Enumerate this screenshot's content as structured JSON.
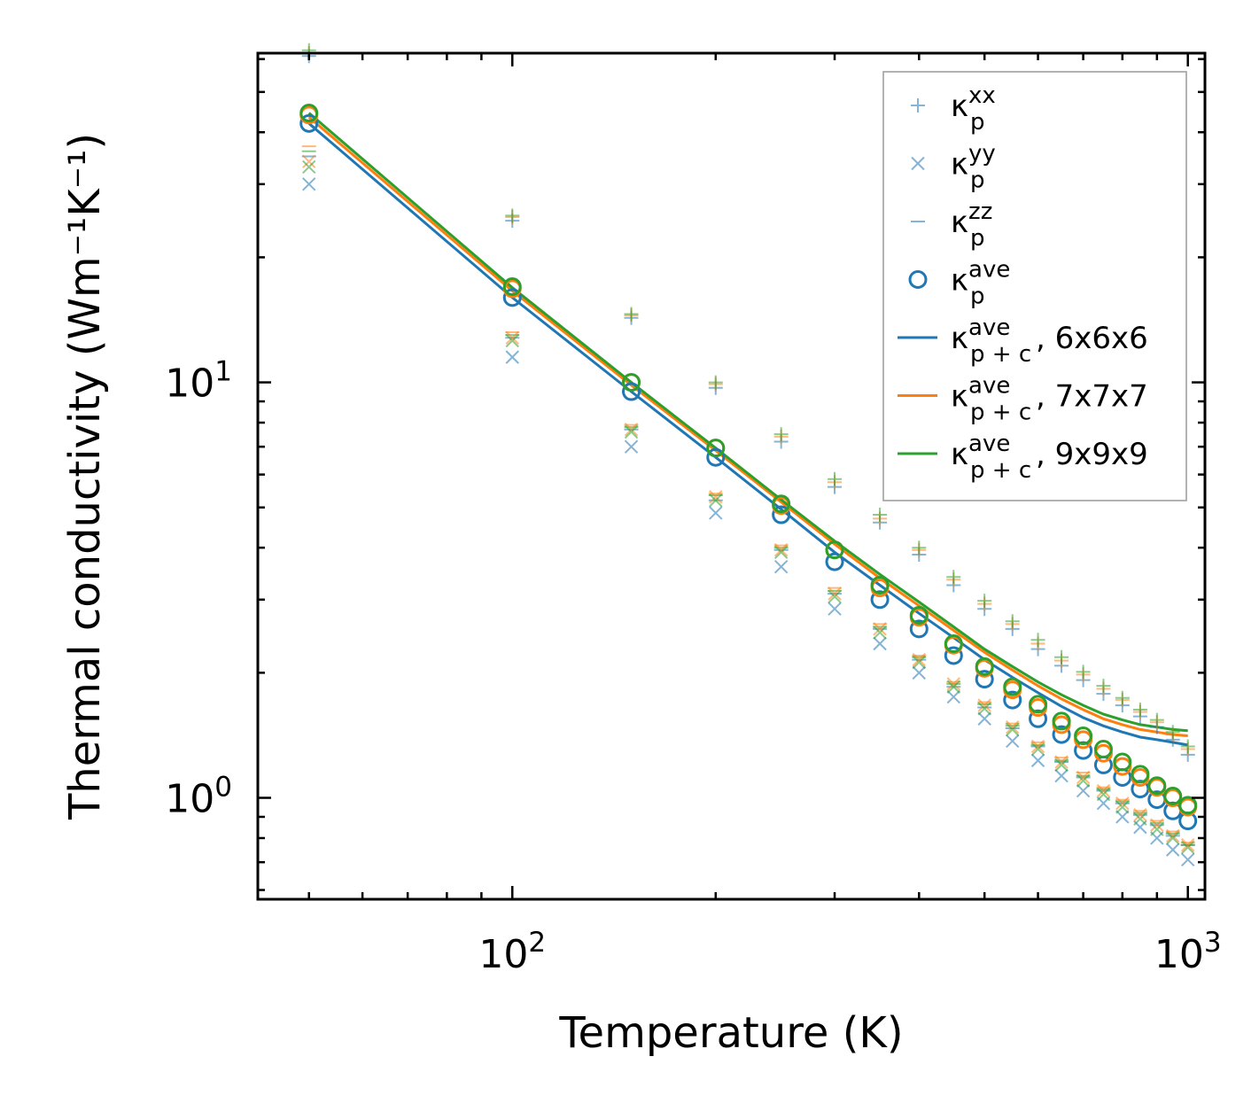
{
  "chart_data": {
    "type": "scatter",
    "scale": {
      "x": "log",
      "y": "log"
    },
    "xlabel": "Temperature (K)",
    "ylabel": "Thermal conductivity (Wm⁻¹K⁻¹)",
    "xlim": [
      42,
      1060
    ],
    "ylim": [
      0.57,
      62
    ],
    "major_ticks": {
      "x": [
        {
          "value": 100,
          "base": "10",
          "exp": "2"
        },
        {
          "value": 1000,
          "base": "10",
          "exp": "3"
        }
      ],
      "y": [
        {
          "value": 1,
          "base": "10",
          "exp": "0"
        },
        {
          "value": 10,
          "base": "10",
          "exp": "1"
        }
      ]
    },
    "temperatures": [
      50,
      100,
      150,
      200,
      250,
      300,
      350,
      400,
      450,
      500,
      550,
      600,
      650,
      700,
      750,
      800,
      850,
      900,
      950,
      1000
    ],
    "colors": {
      "blue": "#1f77b4",
      "orange": "#ff7f0e",
      "green": "#2ca02c"
    },
    "legend": {
      "position": "top-right",
      "entries": [
        {
          "symbol": "+",
          "style": "plus",
          "color": "#1f77b4",
          "base": "κ",
          "sub": "p",
          "sup": "xx",
          "suffix": ""
        },
        {
          "symbol": "x",
          "style": "cross",
          "color": "#1f77b4",
          "base": "κ",
          "sub": "p",
          "sup": "yy",
          "suffix": ""
        },
        {
          "symbol": "_",
          "style": "dash",
          "color": "#1f77b4",
          "base": "κ",
          "sub": "p",
          "sup": "zz",
          "suffix": ""
        },
        {
          "symbol": "o",
          "style": "circle",
          "color": "#1f77b4",
          "base": "κ",
          "sub": "p",
          "sup": "ave",
          "suffix": ""
        },
        {
          "symbol": "-",
          "style": "line",
          "color": "#1f77b4",
          "base": "κ",
          "sub": "p + c",
          "sup": "ave",
          "suffix": ", 6x6x6"
        },
        {
          "symbol": "-",
          "style": "line",
          "color": "#ff7f0e",
          "base": "κ",
          "sub": "p + c",
          "sup": "ave",
          "suffix": ", 7x7x7"
        },
        {
          "symbol": "-",
          "style": "line",
          "color": "#2ca02c",
          "base": "κ",
          "sub": "p + c",
          "sup": "ave",
          "suffix": ", 9x9x9"
        }
      ]
    },
    "series": [
      {
        "name": "kappa_p_xx 6x6x6",
        "marker": "plus",
        "color": "#1f77b4",
        "values": [
          61,
          24.5,
          14.3,
          9.7,
          7.2,
          5.6,
          4.6,
          3.85,
          3.25,
          2.85,
          2.55,
          2.28,
          2.08,
          1.92,
          1.78,
          1.67,
          1.57,
          1.48,
          1.38,
          1.27
        ]
      },
      {
        "name": "kappa_p_yy 6x6x6",
        "marker": "cross",
        "color": "#1f77b4",
        "values": [
          30,
          11.5,
          7.0,
          4.85,
          3.6,
          2.85,
          2.35,
          2.0,
          1.75,
          1.55,
          1.37,
          1.23,
          1.13,
          1.04,
          0.97,
          0.9,
          0.85,
          0.8,
          0.75,
          0.71
        ]
      },
      {
        "name": "kappa_p_zz 6x6x6",
        "marker": "dash",
        "color": "#1f77b4",
        "values": [
          35,
          12.8,
          7.7,
          5.2,
          3.95,
          3.1,
          2.55,
          2.15,
          1.85,
          1.65,
          1.47,
          1.33,
          1.22,
          1.12,
          1.04,
          0.97,
          0.91,
          0.86,
          0.81,
          0.77
        ]
      },
      {
        "name": "kappa_p_ave 6x6x6",
        "marker": "circle",
        "color": "#1f77b4",
        "values": [
          42.0,
          16.0,
          9.5,
          6.6,
          4.8,
          3.7,
          3.0,
          2.55,
          2.2,
          1.93,
          1.72,
          1.55,
          1.42,
          1.3,
          1.2,
          1.12,
          1.05,
          0.99,
          0.93,
          0.88
        ]
      },
      {
        "name": "kappa_p_xx 7x7x7",
        "marker": "plus",
        "color": "#ff7f0e",
        "values": [
          62,
          25.0,
          14.5,
          9.9,
          7.4,
          5.75,
          4.7,
          3.95,
          3.35,
          2.93,
          2.62,
          2.35,
          2.14,
          1.98,
          1.83,
          1.72,
          1.61,
          1.52,
          1.42,
          1.31
        ]
      },
      {
        "name": "kappa_p_yy 7x7x7",
        "marker": "cross",
        "color": "#ff7f0e",
        "values": [
          34,
          12.8,
          7.7,
          5.3,
          3.95,
          3.1,
          2.55,
          2.15,
          1.88,
          1.67,
          1.48,
          1.33,
          1.22,
          1.12,
          1.04,
          0.97,
          0.91,
          0.86,
          0.81,
          0.77
        ]
      },
      {
        "name": "kappa_p_zz 7x7x7",
        "marker": "dash",
        "color": "#ff7f0e",
        "values": [
          37,
          13.2,
          7.9,
          5.4,
          4.05,
          3.2,
          2.62,
          2.2,
          1.9,
          1.7,
          1.51,
          1.36,
          1.25,
          1.15,
          1.06,
          0.99,
          0.93,
          0.88,
          0.83,
          0.78
        ]
      },
      {
        "name": "kappa_p_ave 7x7x7",
        "marker": "circle",
        "color": "#ff7f0e",
        "values": [
          44.0,
          16.8,
          10.0,
          6.95,
          5.05,
          3.95,
          3.2,
          2.72,
          2.33,
          2.05,
          1.82,
          1.65,
          1.5,
          1.38,
          1.28,
          1.19,
          1.12,
          1.06,
          1.0,
          0.95
        ]
      },
      {
        "name": "kappa_p_xx 9x9x9",
        "marker": "plus",
        "color": "#2ca02c",
        "values": [
          63,
          25.2,
          14.6,
          10.0,
          7.5,
          5.85,
          4.8,
          4.0,
          3.4,
          2.98,
          2.66,
          2.4,
          2.18,
          2.01,
          1.86,
          1.74,
          1.63,
          1.54,
          1.44,
          1.33
        ]
      },
      {
        "name": "kappa_p_yy 9x9x9",
        "marker": "cross",
        "color": "#2ca02c",
        "values": [
          33,
          12.6,
          7.6,
          5.2,
          3.9,
          3.05,
          2.5,
          2.12,
          1.85,
          1.64,
          1.46,
          1.31,
          1.2,
          1.1,
          1.02,
          0.95,
          0.89,
          0.84,
          0.8,
          0.76
        ]
      },
      {
        "name": "kappa_p_zz 9x9x9",
        "marker": "dash",
        "color": "#2ca02c",
        "values": [
          36,
          13.0,
          7.8,
          5.35,
          4.0,
          3.15,
          2.58,
          2.18,
          1.88,
          1.68,
          1.49,
          1.34,
          1.23,
          1.13,
          1.05,
          0.98,
          0.92,
          0.87,
          0.82,
          0.77
        ]
      },
      {
        "name": "kappa_p_ave 9x9x9",
        "marker": "circle",
        "color": "#2ca02c",
        "values": [
          44.5,
          17.0,
          10.0,
          6.95,
          5.1,
          3.95,
          3.25,
          2.75,
          2.35,
          2.07,
          1.85,
          1.68,
          1.53,
          1.41,
          1.31,
          1.22,
          1.14,
          1.07,
          1.01,
          0.96
        ]
      },
      {
        "name": "kappa_p+c_ave, 6x6x6",
        "marker": "line",
        "color": "#1f77b4",
        "values": [
          42.0,
          16.0,
          9.5,
          6.6,
          4.95,
          3.9,
          3.25,
          2.78,
          2.43,
          2.15,
          1.95,
          1.79,
          1.66,
          1.56,
          1.49,
          1.44,
          1.4,
          1.38,
          1.36,
          1.34
        ]
      },
      {
        "name": "kappa_p+c_ave, 7x7x7",
        "marker": "line",
        "color": "#ff7f0e",
        "values": [
          43.5,
          16.6,
          9.85,
          6.85,
          5.15,
          4.08,
          3.38,
          2.9,
          2.53,
          2.24,
          2.03,
          1.86,
          1.73,
          1.63,
          1.55,
          1.5,
          1.46,
          1.44,
          1.42,
          1.41
        ]
      },
      {
        "name": "kappa_p+c_ave, 9x9x9",
        "marker": "line",
        "color": "#2ca02c",
        "values": [
          44.5,
          16.9,
          10.0,
          6.95,
          5.22,
          4.15,
          3.45,
          2.96,
          2.58,
          2.28,
          2.07,
          1.9,
          1.77,
          1.67,
          1.59,
          1.54,
          1.5,
          1.48,
          1.46,
          1.45
        ]
      }
    ]
  }
}
